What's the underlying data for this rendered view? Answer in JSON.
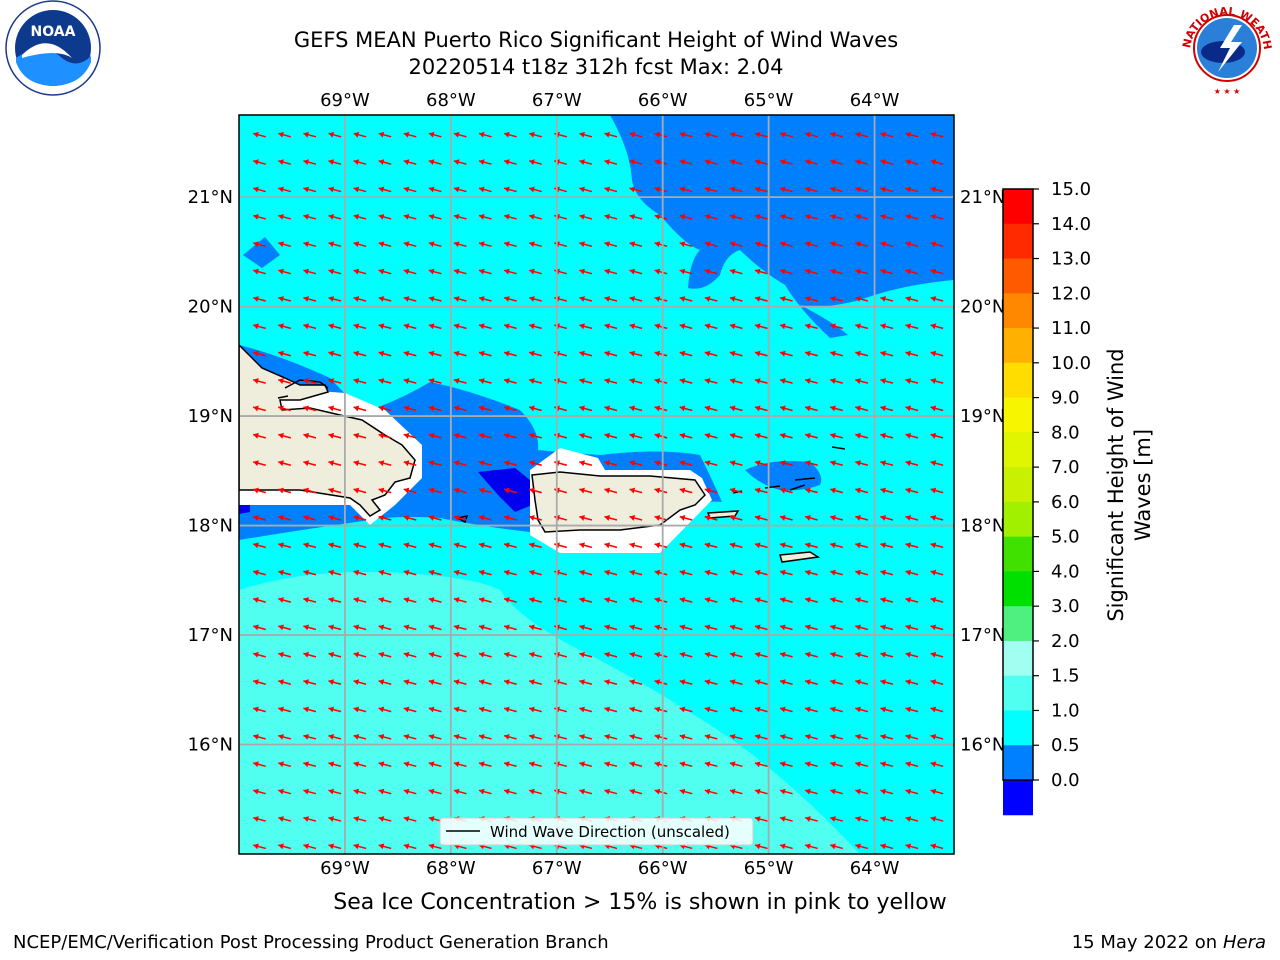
{
  "title": {
    "line1": "GEFS MEAN Puerto Rico Significant Height of Wind Waves",
    "line2": "20220514 t18z 312h fcst   Max: 2.04"
  },
  "logos": {
    "left": "noaa-logo",
    "right": "national-weather-service-logo"
  },
  "map": {
    "lon_labels": [
      "69°W",
      "68°W",
      "67°W",
      "66°W",
      "65°W",
      "64°W"
    ],
    "lat_labels": [
      "21°N",
      "20°N",
      "19°N",
      "18°N",
      "17°N",
      "16°N"
    ],
    "lon_range": [
      -70.0,
      -63.25
    ],
    "lat_range": [
      15.0,
      21.75
    ],
    "legend_text": "Wind Wave Direction (unscaled)",
    "arrow_color": "#ff0000",
    "land_color": "#efeddc",
    "grid": true
  },
  "colorbar": {
    "label": "Significant Height of Wind Waves [m]",
    "label_line1": "Significant Height of Wind",
    "label_line2": "Waves [m]",
    "ticks": [
      "15.0",
      "14.0",
      "13.0",
      "12.0",
      "11.0",
      "10.0",
      "9.0",
      "8.0",
      "7.0",
      "6.0",
      "5.0",
      "4.0",
      "3.0",
      "2.0",
      "1.5",
      "1.0",
      "0.5",
      "0.0"
    ],
    "colors_top_to_bottom": [
      "#ff0000",
      "#ff2a00",
      "#ff5a00",
      "#ff8800",
      "#ffb000",
      "#ffdd00",
      "#f7f500",
      "#e0f500",
      "#c8f000",
      "#a0f000",
      "#40e000",
      "#00e000",
      "#50f080",
      "#a0fff0",
      "#50fff0",
      "#00ffff",
      "#0080ff",
      "#0000ff"
    ]
  },
  "footer": {
    "ice_note": "Sea Ice Concentration > 15% is shown in pink to yellow",
    "credit": "NCEP/EMC/Verification Post Processing Product Generation Branch",
    "date": "15 May 2022 on",
    "host": "Hera"
  }
}
